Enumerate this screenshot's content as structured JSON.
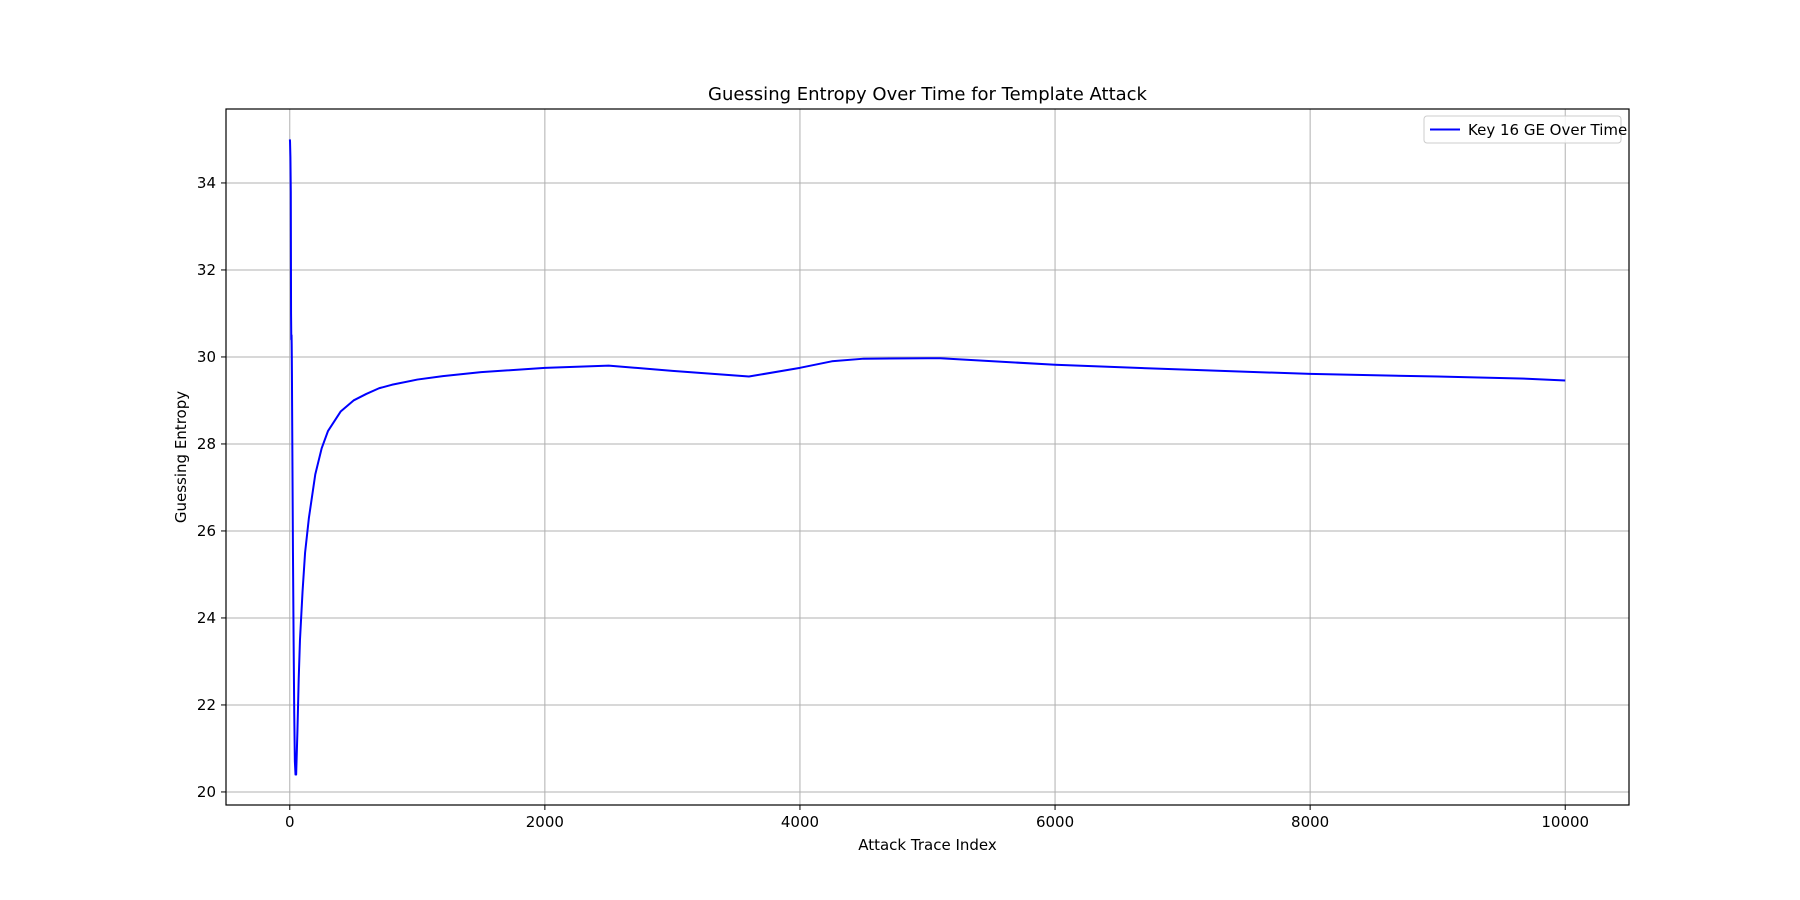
{
  "chart_data": {
    "type": "line",
    "title": "Guessing Entropy Over Time for Template Attack",
    "xlabel": "Attack Trace Index",
    "ylabel": "Guessing Entropy",
    "xlim": [
      -500,
      10500
    ],
    "ylim": [
      19.7,
      35.7
    ],
    "xticks": [
      0,
      2000,
      4000,
      6000,
      8000,
      10000
    ],
    "yticks": [
      20,
      22,
      24,
      26,
      28,
      30,
      32,
      34
    ],
    "grid": true,
    "legend": "top-right",
    "series": [
      {
        "name": "Key 16 GE Over Time",
        "color": "#0000ff",
        "x": [
          1,
          2,
          5,
          8,
          10,
          12,
          14,
          15,
          16,
          17,
          18,
          20,
          25,
          30,
          35,
          40,
          45,
          50,
          60,
          70,
          80,
          100,
          120,
          150,
          200,
          250,
          300,
          400,
          500,
          600,
          700,
          800,
          1000,
          1200,
          1500,
          2000,
          2500,
          3000,
          3600,
          4000,
          4250,
          4500,
          5000,
          5100,
          6000,
          7000,
          8000,
          9000,
          9700,
          10000
        ],
        "values": [
          35.0,
          34.95,
          34.6,
          33.8,
          31.0,
          30.4,
          30.5,
          30.3,
          30.0,
          29.6,
          29.0,
          28.0,
          25.5,
          23.5,
          21.8,
          20.7,
          20.4,
          20.4,
          21.4,
          22.6,
          23.5,
          24.6,
          25.5,
          26.3,
          27.3,
          27.9,
          28.3,
          28.75,
          29.0,
          29.15,
          29.28,
          29.36,
          29.48,
          29.56,
          29.65,
          29.75,
          29.8,
          29.68,
          29.55,
          29.75,
          29.9,
          29.96,
          29.97,
          29.97,
          29.82,
          29.71,
          29.61,
          29.55,
          29.5,
          29.46
        ]
      }
    ]
  }
}
